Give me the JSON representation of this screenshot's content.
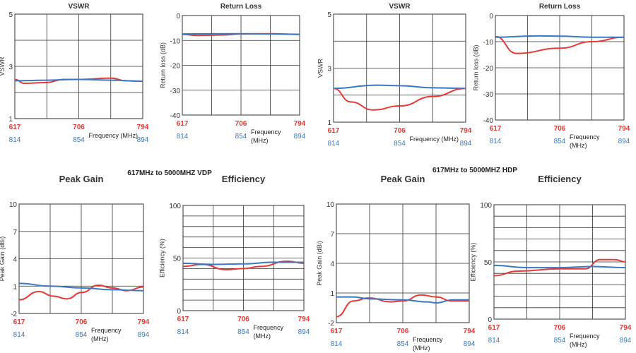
{
  "section_titles": [
    "617MHz to 5000MHZ VDP",
    "617MHz to 5000MHZ HDP"
  ],
  "colors": {
    "red": "#e53935",
    "blue": "#3a78c2",
    "grid": "#333333"
  },
  "chart_data": [
    {
      "type": "line",
      "title": "VSWR",
      "ylabel": "VSWR",
      "ylim": [
        1,
        5
      ],
      "yticks": [
        5,
        3,
        1
      ],
      "ygrid": [
        2,
        3,
        4
      ],
      "xlabel": "Frequency (MHz)",
      "x_red_ticks": [
        617,
        706,
        794
      ],
      "x_blue_ticks": [
        814,
        854,
        894
      ],
      "series": [
        {
          "color": "red",
          "x": [
            617,
            630,
            660,
            685,
            706,
            750,
            770,
            794
          ],
          "y": [
            2.5,
            2.35,
            2.38,
            2.5,
            2.5,
            2.55,
            2.45,
            2.43
          ]
        },
        {
          "color": "blue",
          "x": [
            814,
            834,
            854,
            874,
            894
          ],
          "y": [
            2.45,
            2.47,
            2.5,
            2.47,
            2.43
          ]
        }
      ]
    },
    {
      "type": "line",
      "title": "Return Loss",
      "ylabel": "Return loss (dB)",
      "ylim": [
        -40,
        0
      ],
      "yticks": [
        0,
        -10,
        -20,
        -30,
        -40
      ],
      "ygrid": [
        -10,
        -20,
        -30
      ],
      "xlabel": "Frequency (MHz)",
      "x_red_ticks": [
        617,
        706,
        794
      ],
      "x_blue_ticks": [
        814,
        854,
        894
      ],
      "series": [
        {
          "color": "red",
          "x": [
            617,
            640,
            680,
            706,
            750,
            794
          ],
          "y": [
            -7.6,
            -8,
            -7.8,
            -7.4,
            -7.3,
            -7.6
          ]
        },
        {
          "color": "blue",
          "x": [
            814,
            854,
            894
          ],
          "y": [
            -7.4,
            -7.3,
            -7.5
          ]
        }
      ]
    },
    {
      "type": "line",
      "title": "VSWR",
      "ylabel": "VSWR",
      "ylim": [
        1,
        5
      ],
      "yticks": [
        5,
        3,
        1
      ],
      "ygrid": [
        2,
        3,
        4
      ],
      "xlabel": "Frequency (MHz)",
      "x_red_ticks": [
        617,
        706,
        794
      ],
      "x_blue_ticks": [
        814,
        854,
        894
      ],
      "series": [
        {
          "color": "red",
          "x": [
            617,
            640,
            670,
            706,
            750,
            794
          ],
          "y": [
            2.25,
            1.75,
            1.45,
            1.6,
            1.95,
            2.25
          ]
        },
        {
          "color": "blue",
          "x": [
            814,
            840,
            854,
            874,
            894
          ],
          "y": [
            2.25,
            2.37,
            2.35,
            2.27,
            2.25
          ]
        }
      ]
    },
    {
      "type": "line",
      "title": "Return Loss",
      "ylabel": "Return loss (dB)",
      "ylim": [
        -40,
        0
      ],
      "yticks": [
        0,
        -10,
        -20,
        -30,
        -40
      ],
      "ygrid": [
        -10,
        -20,
        -30
      ],
      "xlabel": "Frequency (MHz)",
      "x_red_ticks": [
        617,
        706,
        794
      ],
      "x_blue_ticks": [
        814,
        854,
        894
      ],
      "series": [
        {
          "color": "red",
          "x": [
            617,
            646,
            706,
            750,
            794
          ],
          "y": [
            -8,
            -14.5,
            -12.5,
            -10,
            -8.3
          ]
        },
        {
          "color": "blue",
          "x": [
            814,
            840,
            854,
            874,
            894
          ],
          "y": [
            -8.3,
            -7.8,
            -7.9,
            -8.3,
            -8.3
          ]
        }
      ]
    },
    {
      "type": "line",
      "title": "Peak Gain",
      "ylabel": "Peak Gain (dBi)",
      "ylim": [
        -2,
        10
      ],
      "yticks": [
        10,
        7,
        4,
        1,
        -2
      ],
      "ygrid": [
        1,
        4,
        7
      ],
      "xlabel": "Frequency (MHz)",
      "x_red_ticks": [
        617,
        706,
        794
      ],
      "x_blue_ticks": [
        814,
        854,
        894
      ],
      "series": [
        {
          "color": "red",
          "x": [
            617,
            645,
            666,
            685,
            706,
            730,
            750,
            770,
            794
          ],
          "y": [
            -0.5,
            0.4,
            -0.1,
            -0.4,
            0.3,
            1.1,
            0.8,
            0.5,
            0.9
          ]
        },
        {
          "color": "blue",
          "x": [
            814,
            834,
            854,
            874,
            894
          ],
          "y": [
            1.3,
            1.0,
            0.8,
            0.6,
            0.5
          ]
        }
      ]
    },
    {
      "type": "line",
      "title": "Efficiency",
      "ylabel": "Efficiency (%)",
      "ylim": [
        0,
        100
      ],
      "yticks": [
        100,
        50,
        0
      ],
      "ygrid": [
        10,
        20,
        30,
        40,
        50,
        60,
        70,
        80,
        90
      ],
      "xlabel": "Frequency (MHz)",
      "x_red_ticks": [
        617,
        706,
        794
      ],
      "x_blue_ticks": [
        814,
        854,
        894
      ],
      "series": [
        {
          "color": "red",
          "x": [
            617,
            645,
            680,
            706,
            730,
            770,
            794
          ],
          "y": [
            42,
            44,
            39,
            40,
            42,
            47,
            45
          ]
        },
        {
          "color": "blue",
          "x": [
            814,
            834,
            854,
            874,
            894
          ],
          "y": [
            45,
            44,
            44.5,
            46,
            46
          ]
        }
      ]
    },
    {
      "type": "line",
      "title": "Peak Gain",
      "ylabel": "Peak Gain (dBi)",
      "ylim": [
        -2,
        10
      ],
      "yticks": [
        10,
        7,
        4,
        1,
        -2
      ],
      "ygrid": [
        1,
        4,
        7
      ],
      "xlabel": "Frequency (MHz)",
      "x_red_ticks": [
        617,
        706,
        794
      ],
      "x_blue_ticks": [
        814,
        854,
        894
      ],
      "series": [
        {
          "color": "red",
          "x": [
            617,
            640,
            660,
            690,
            706,
            730,
            750,
            770,
            794
          ],
          "y": [
            -1.4,
            0.2,
            0.5,
            0.1,
            0.2,
            0.8,
            0.6,
            0.2,
            0.2
          ]
        },
        {
          "color": "blue",
          "x": [
            814,
            824,
            834,
            854,
            869,
            874,
            884,
            894
          ],
          "y": [
            0.6,
            0.6,
            0.4,
            0.3,
            0.1,
            0,
            0.3,
            0.3
          ]
        }
      ]
    },
    {
      "type": "line",
      "title": "Efficiency",
      "ylabel": "Efficiency (%)",
      "ylim": [
        0,
        100
      ],
      "yticks": [
        100,
        50,
        0
      ],
      "ygrid": [
        10,
        20,
        30,
        40,
        50,
        60,
        70,
        80,
        90
      ],
      "xlabel": "Frequency (MHz)",
      "x_red_ticks": [
        617,
        706,
        794
      ],
      "x_blue_ticks": [
        814,
        854,
        894
      ],
      "series": [
        {
          "color": "red",
          "x": [
            617,
            650,
            706,
            740,
            760,
            780,
            794
          ],
          "y": [
            38,
            42,
            44,
            44,
            52,
            52,
            50
          ]
        },
        {
          "color": "blue",
          "x": [
            814,
            834,
            854,
            874,
            894
          ],
          "y": [
            47,
            45,
            45,
            46,
            45
          ]
        }
      ]
    }
  ]
}
